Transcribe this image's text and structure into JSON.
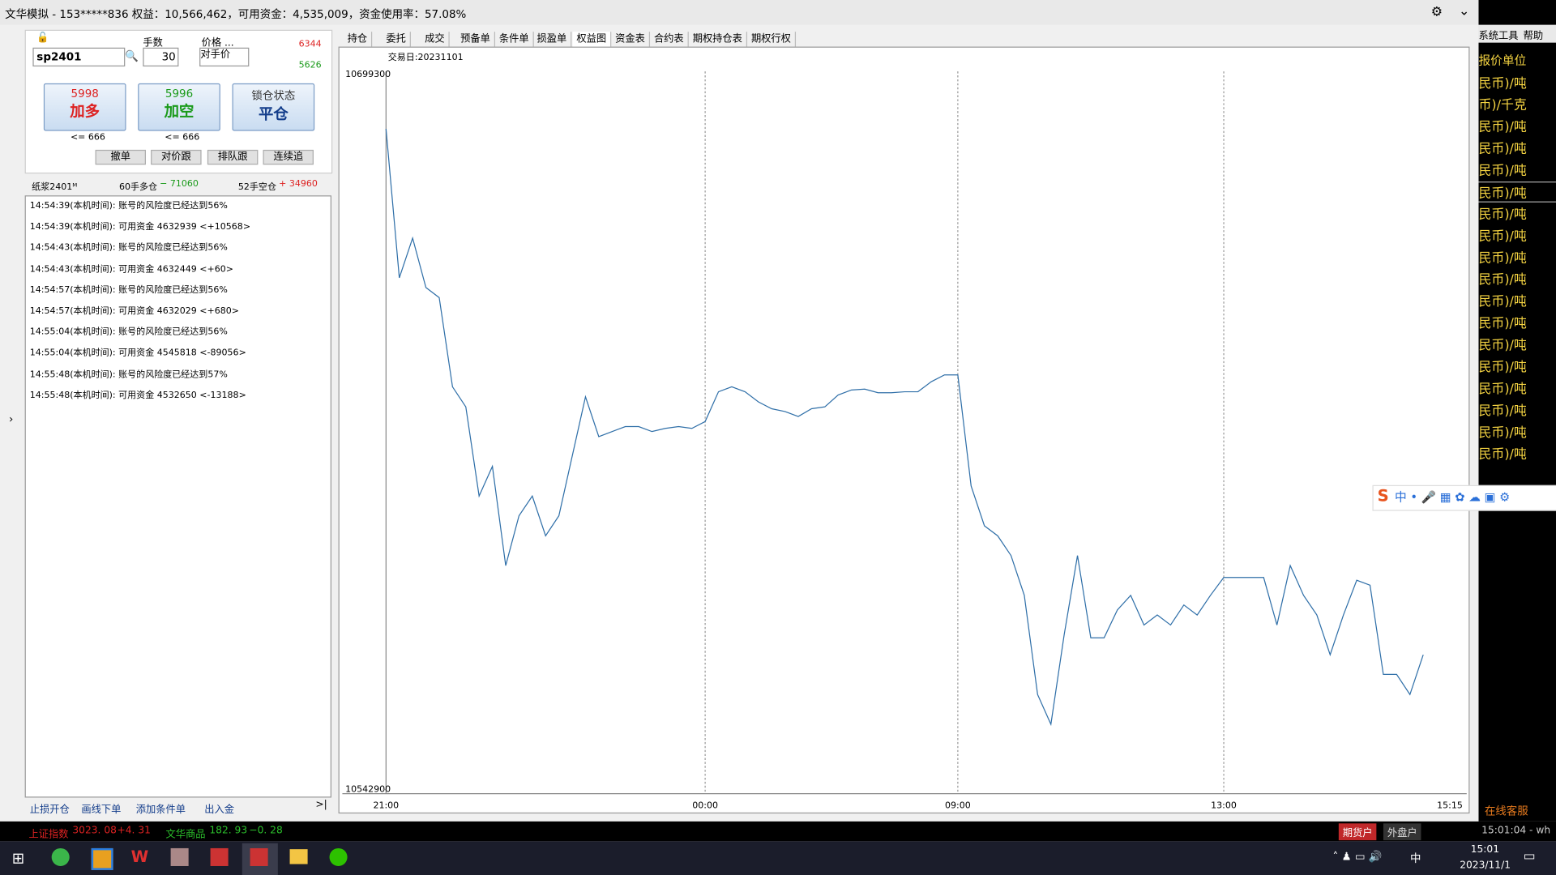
{
  "title_bar": {
    "text": "文华模拟 - 153*****836  权益：10,566,462，可用资金：4,535,009，资金使用率：57.08%"
  },
  "order_panel": {
    "contract": "sp2401",
    "qty_label": "手数",
    "qty": "30",
    "price_label": "价格 ...",
    "price": "对手价",
    "price_top": "6344",
    "price_bottom": "5626",
    "buttons": [
      {
        "price": "5998",
        "label": "加多",
        "limit": "<= 666"
      },
      {
        "price": "5996",
        "label": "加空",
        "limit": "<= 666"
      },
      {
        "price": "锁仓状态",
        "label": "平仓"
      }
    ],
    "small_buttons": [
      "撤单",
      "对价跟",
      "排队跟",
      "连续追"
    ]
  },
  "position_bar": {
    "contract": "纸浆2401ᴹ",
    "long": "60手多仓",
    "long_pnl": "− 71060",
    "short": "52手空仓",
    "short_pnl": "+ 34960"
  },
  "log": [
    "14:54:39(本机时间): 账号的风险度已经达到56%",
    "14:54:39(本机时间): 可用资金 4632939  <+10568>",
    "14:54:43(本机时间): 账号的风险度已经达到56%",
    "14:54:43(本机时间): 可用资金 4632449  <+60>",
    "14:54:57(本机时间): 账号的风险度已经达到56%",
    "14:54:57(本机时间): 可用资金 4632029  <+680>",
    "14:55:04(本机时间): 账号的风险度已经达到56%",
    "14:55:04(本机时间): 可用资金 4545818  <-89056>",
    "14:55:48(本机时间): 账号的风险度已经达到57%",
    "14:55:48(本机时间): 可用资金 4532650  <-13188>"
  ],
  "bottom_links": [
    "止损开仓",
    "画线下单",
    "添加条件单",
    "出入金"
  ],
  "tabs": [
    "持仓",
    "委托",
    "成交",
    "预备单",
    "条件单",
    "损盈单",
    "权益图",
    "资金表",
    "合约表",
    "期权持仓表",
    "期权行权"
  ],
  "chart_data": {
    "type": "line",
    "subtitle": "交易日:20231101",
    "color": "#2f6fa8",
    "categories": [
      "21:00",
      null,
      null,
      null,
      null,
      null,
      null,
      null,
      null,
      null,
      null,
      null,
      null,
      null,
      null,
      null,
      null,
      null,
      null,
      null,
      null,
      null,
      null,
      null,
      "00:00",
      null,
      null,
      null,
      null,
      null,
      null,
      null,
      null,
      null,
      null,
      null,
      null,
      null,
      null,
      null,
      null,
      null,
      null,
      "09:00",
      null,
      null,
      null,
      null,
      null,
      null,
      null,
      null,
      null,
      null,
      null,
      null,
      null,
      null,
      null,
      null,
      null,
      null,
      null,
      "13:00",
      null,
      null,
      null,
      null,
      null,
      null,
      null,
      null,
      null,
      null,
      null,
      null,
      null,
      null,
      null,
      null,
      "15:15"
    ],
    "values": [
      10687400,
      10654800,
      10663500,
      10652700,
      10650500,
      10631000,
      10626600,
      10607100,
      10613600,
      10591900,
      10602800,
      10607100,
      10598400,
      10602800,
      10615800,
      10628800,
      10620100,
      10621200,
      10622300,
      10622300,
      10621200,
      10621900,
      10622300,
      10621900,
      10623400,
      10629900,
      10631000,
      10629900,
      10627700,
      10626200,
      10625600,
      10624500,
      10626200,
      10626600,
      10629200,
      10630300,
      10630500,
      10629700,
      10629700,
      10629900,
      10629900,
      10632100,
      10633600,
      10633600,
      10609300,
      10600600,
      10598400,
      10594100,
      10585400,
      10563700,
      10557200,
      10576800,
      10594100,
      10576100,
      10576100,
      10582200,
      10585400,
      10578900,
      10581100,
      10578900,
      10583300,
      10581100,
      10585400,
      10589300,
      10589300,
      10589300,
      10589300,
      10578900,
      10591900,
      10585400,
      10581100,
      10572400,
      10581100,
      10588700,
      10587600,
      10568100,
      10568100,
      10563700,
      10572400,
      null,
      null
    ],
    "ylim": [
      10542900,
      10699300
    ],
    "yticks": [
      10542900,
      10699300
    ],
    "grid": true
  },
  "right_panel": {
    "menu": [
      "系统工具",
      "帮助"
    ],
    "header": "报价单位",
    "rows": [
      "民币)/吨",
      "币)/千克",
      "民币)/吨",
      "民币)/吨",
      "民币)/吨",
      "民币)/吨",
      "民币)/吨",
      "民币)/吨",
      "民币)/吨",
      "民币)/吨",
      "民币)/吨",
      "民币)/吨",
      "民币)/吨",
      "民币)/吨",
      "民币)/吨",
      "民币)/吨",
      "民币)/吨",
      "民币)/吨"
    ],
    "service": "在线客服"
  },
  "status_bar": {
    "idx1_name": "上证指数",
    "idx1_value": "3023. 08",
    "idx1_change": "+4. 31",
    "idx2_name": "文华商品",
    "idx2_value": "182. 93",
    "idx2_change": "−0. 28",
    "account1": "期货户",
    "account2": "外盘户",
    "time": "15:01:04 - wh"
  },
  "taskbar": {
    "ime": "中",
    "time": "15:01",
    "date": "2023/11/1"
  }
}
